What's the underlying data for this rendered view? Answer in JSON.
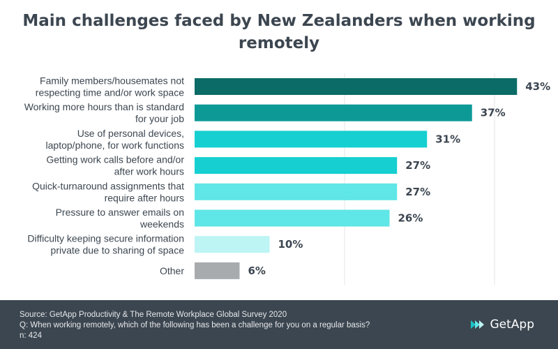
{
  "chart_data": {
    "type": "bar",
    "orientation": "horizontal",
    "title": "Main challenges faced by New Zealanders when working remotely",
    "categories": [
      [
        "Family members/housemates not",
        "respecting time and/or work space"
      ],
      [
        "Working more hours than is standard",
        "for your job"
      ],
      [
        "Use of personal devices,",
        "laptop/phone, for work functions"
      ],
      [
        "Getting work calls before and/or",
        "after work hours"
      ],
      [
        "Quick-turnaround assignments that",
        "require after hours"
      ],
      [
        "Pressure to answer emails on",
        "weekends"
      ],
      [
        "Difficulty keeping secure information",
        "private due to sharing of space"
      ],
      [
        "Other"
      ]
    ],
    "values": [
      43,
      37,
      31,
      27,
      27,
      26,
      10,
      6
    ],
    "value_labels": [
      "43%",
      "37%",
      "31%",
      "27%",
      "27%",
      "26%",
      "10%",
      "6%"
    ],
    "bar_colors": [
      "#0b6b66",
      "#0d9a97",
      "#15cfd0",
      "#15cfd0",
      "#5fe6e6",
      "#5fe6e6",
      "#bdf4f4",
      "#a8abad"
    ],
    "xlim": [
      0,
      50
    ],
    "grid": true
  },
  "footer": {
    "source": "Source: GetApp Productivity & The Remote Workplace Global Survey 2020",
    "question": "Q: When working remotely, which of the following has been a challenge for you on a regular basis?",
    "n": "n: 424",
    "brand": "GetApp"
  },
  "colors": {
    "text": "#3c4650",
    "footer_bg": "#3c4650",
    "brand_icon": "#19c3c4"
  }
}
